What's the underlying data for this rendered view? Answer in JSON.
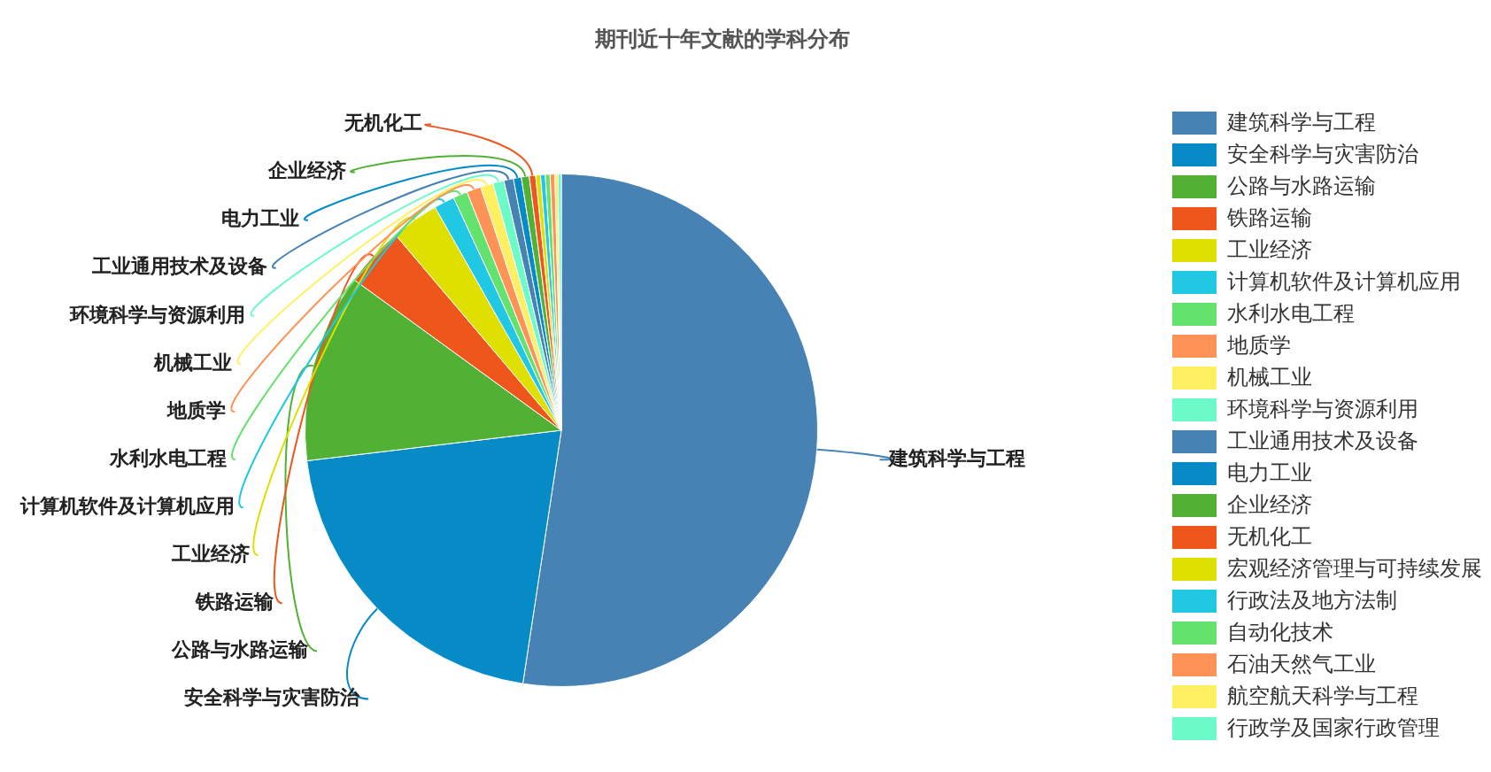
{
  "chart_data": {
    "type": "pie",
    "title": "期刊近十年文献的学科分布",
    "categories": [
      "建筑科学与工程",
      "安全科学与灾害防治",
      "公路与水路运输",
      "铁路运输",
      "工业经济",
      "计算机软件及计算机应用",
      "水利水电工程",
      "地质学",
      "机械工业",
      "环境科学与资源利用",
      "工业通用技术及设备",
      "电力工业",
      "企业经济",
      "无机化工",
      "宏观经济管理与可持续发展",
      "行政法及地方法制",
      "自动化技术",
      "石油天然气工业",
      "航空航天科学与工程",
      "行政学及国家行政管理"
    ],
    "values": [
      52.4,
      20.7,
      11.9,
      3.8,
      3.0,
      1.3,
      0.9,
      0.9,
      0.8,
      0.7,
      0.6,
      0.5,
      0.5,
      0.4,
      0.3,
      0.3,
      0.3,
      0.3,
      0.2,
      0.2
    ],
    "colors": [
      "#4682b4",
      "#078bc7",
      "#51b134",
      "#ee561c",
      "#dfdf00",
      "#21c8e4",
      "#63e26e",
      "#ff9257",
      "#fff062",
      "#6bfac8",
      "#4682b4",
      "#078bc7",
      "#51b134",
      "#ee561c",
      "#dfdf00",
      "#21c8e4",
      "#63e26e",
      "#ff9257",
      "#fff062",
      "#6bfac8"
    ],
    "legend": "right"
  }
}
